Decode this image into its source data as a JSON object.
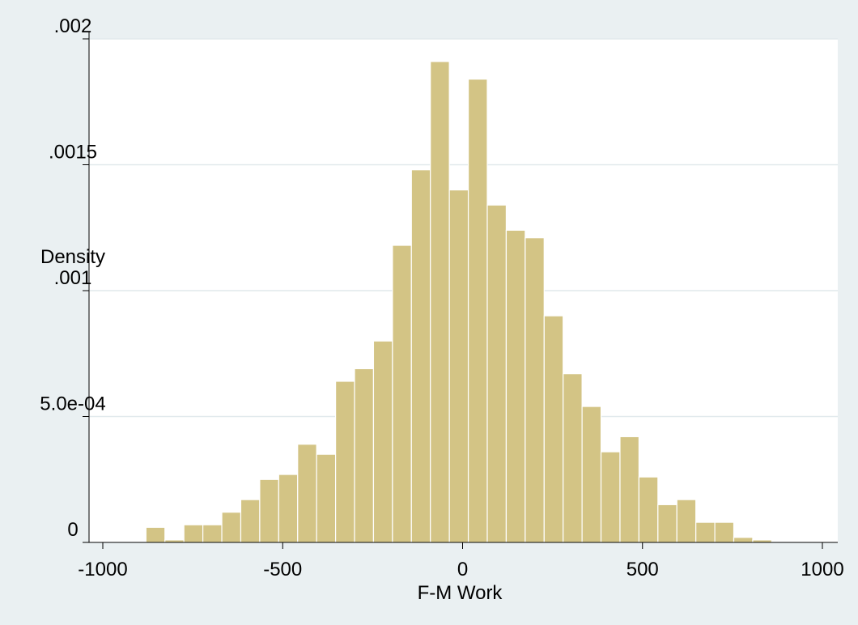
{
  "colors": {
    "background": "#eaf0f2",
    "plot_background": "#ffffff",
    "bar_fill": "#d3c485",
    "bar_edge": "#ffffff",
    "grid": "#e1e9ec",
    "axis": "#000000"
  },
  "chart_data": {
    "type": "bar",
    "subtype": "histogram",
    "title": "",
    "xlabel": "F-M Work",
    "ylabel": "Density",
    "xlim": [
      -1000,
      1000
    ],
    "ylim": [
      0,
      0.002
    ],
    "x_ticks": [
      -1000,
      -500,
      0,
      500,
      1000
    ],
    "x_tick_labels": [
      "-1000",
      "-500",
      "0",
      "500",
      "1000"
    ],
    "y_ticks": [
      0,
      0.0005,
      0.001,
      0.0015,
      0.002
    ],
    "y_tick_labels": [
      "0",
      "5.0e-04",
      ".001",
      ".0015",
      ".002"
    ],
    "grid": "horizontal",
    "legend": "none",
    "bin_width": 52.7,
    "bins": [
      {
        "start": -880,
        "value": 6e-05
      },
      {
        "start": -827.3,
        "value": 1e-05
      },
      {
        "start": -774.6,
        "value": 7e-05
      },
      {
        "start": -721.9,
        "value": 7e-05
      },
      {
        "start": -669.2,
        "value": 0.00012
      },
      {
        "start": -616.5,
        "value": 0.00017
      },
      {
        "start": -563.8,
        "value": 0.00025
      },
      {
        "start": -511.1,
        "value": 0.00027
      },
      {
        "start": -458.4,
        "value": 0.00039
      },
      {
        "start": -405.7,
        "value": 0.00035
      },
      {
        "start": -353.0,
        "value": 0.00064
      },
      {
        "start": -300.3,
        "value": 0.00069
      },
      {
        "start": -247.6,
        "value": 0.0008
      },
      {
        "start": -194.9,
        "value": 0.00118
      },
      {
        "start": -142.2,
        "value": 0.00148
      },
      {
        "start": -89.5,
        "value": 0.00191
      },
      {
        "start": -36.8,
        "value": 0.0014
      },
      {
        "start": 15.9,
        "value": 0.00184
      },
      {
        "start": 68.6,
        "value": 0.00134
      },
      {
        "start": 121.3,
        "value": 0.00124
      },
      {
        "start": 174.0,
        "value": 0.00121
      },
      {
        "start": 226.7,
        "value": 0.0009
      },
      {
        "start": 279.4,
        "value": 0.00067
      },
      {
        "start": 332.1,
        "value": 0.00054
      },
      {
        "start": 384.8,
        "value": 0.00036
      },
      {
        "start": 437.5,
        "value": 0.00042
      },
      {
        "start": 490.2,
        "value": 0.00026
      },
      {
        "start": 542.9,
        "value": 0.00015
      },
      {
        "start": 595.6,
        "value": 0.00017
      },
      {
        "start": 648.3,
        "value": 8e-05
      },
      {
        "start": 701.0,
        "value": 8e-05
      },
      {
        "start": 753.7,
        "value": 2e-05
      },
      {
        "start": 806.4,
        "value": 1e-05
      }
    ]
  }
}
